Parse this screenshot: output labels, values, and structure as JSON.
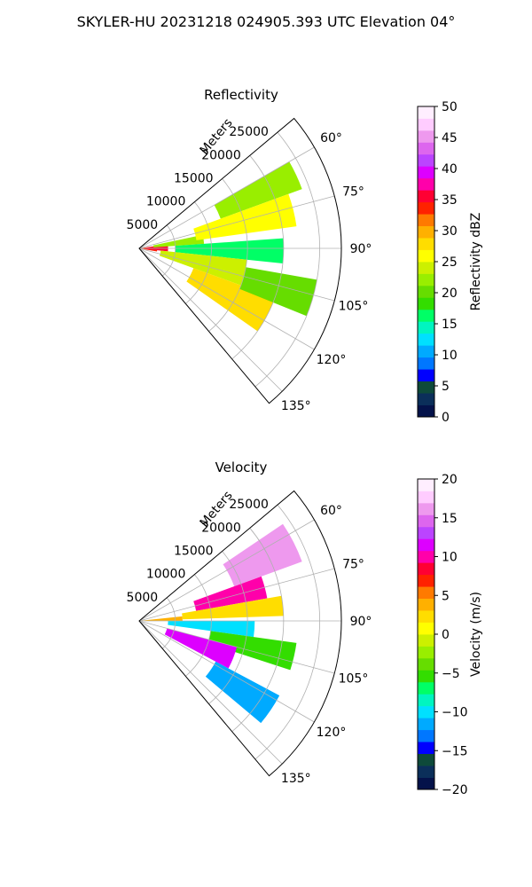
{
  "figure": {
    "title": "SKYLER-HU  20231218  024905.393 UTC Elevation 04°"
  },
  "chart_data": [
    {
      "type": "heatmap",
      "projection": "polar-sector",
      "title": "Reflectivity",
      "radial_label": "Meters",
      "theta_range_deg": [
        50,
        140
      ],
      "r_max_m": 28000,
      "r_ticks": [
        5000,
        10000,
        15000,
        20000,
        25000
      ],
      "r_tick_labels": [
        "5000",
        "10000",
        "15000",
        "20000",
        "25000"
      ],
      "theta_ticks": [
        60,
        75,
        90,
        105,
        120,
        135
      ],
      "theta_tick_labels": [
        "60°",
        "75°",
        "90°",
        "105°",
        "120°",
        "135°"
      ],
      "grid": true,
      "colorbar": {
        "label": "Reflectivity dBZ",
        "vmin": 0,
        "vmax": 50,
        "ticks": [
          0,
          5,
          10,
          15,
          20,
          25,
          30,
          35,
          40,
          45,
          50
        ],
        "tick_labels": [
          "0",
          "5",
          "10",
          "15",
          "20",
          "25",
          "30",
          "35",
          "40",
          "45",
          "50"
        ],
        "colors": [
          "#04124a",
          "#0b2f5a",
          "#0e4a3a",
          "#0000ff",
          "#0077ff",
          "#00aaff",
          "#00e0ff",
          "#00f5c0",
          "#00ff66",
          "#33dd00",
          "#66dd00",
          "#99ee00",
          "#ccf000",
          "#ffff00",
          "#ffdd00",
          "#ffb000",
          "#ff7a00",
          "#ff2200",
          "#ff0033",
          "#ff00aa",
          "#dd00ff",
          "#bb44ff",
          "#dd66ee",
          "#ee99ee",
          "#ffccff",
          "#ffeeff"
        ]
      },
      "cells": [
        {
          "theta": [
            82,
            100
          ],
          "r": [
            0,
            2500
          ],
          "value": 33
        },
        {
          "theta": [
            84,
            96
          ],
          "r": [
            1000,
            4000
          ],
          "value": 36
        },
        {
          "theta": [
            78,
            86
          ],
          "r": [
            2000,
            9000
          ],
          "value": 22
        },
        {
          "theta": [
            86,
            96
          ],
          "r": [
            5000,
            20000
          ],
          "value": 16
        },
        {
          "theta": [
            96,
            110
          ],
          "r": [
            3000,
            15000
          ],
          "value": 24
        },
        {
          "theta": [
            110,
            125
          ],
          "r": [
            8000,
            20000
          ],
          "value": 27
        },
        {
          "theta": [
            60,
            70
          ],
          "r": [
            12000,
            24000
          ],
          "value": 23
        },
        {
          "theta": [
            70,
            82
          ],
          "r": [
            8000,
            22000
          ],
          "value": 25
        },
        {
          "theta": [
            100,
            112
          ],
          "r": [
            15000,
            25000
          ],
          "value": 21
        }
      ]
    },
    {
      "type": "heatmap",
      "projection": "polar-sector",
      "title": "Velocity",
      "radial_label": "Meters",
      "theta_range_deg": [
        50,
        140
      ],
      "r_max_m": 28000,
      "r_ticks": [
        5000,
        10000,
        15000,
        20000,
        25000
      ],
      "r_tick_labels": [
        "5000",
        "10000",
        "15000",
        "20000",
        "25000"
      ],
      "theta_ticks": [
        60,
        75,
        90,
        105,
        120,
        135
      ],
      "theta_tick_labels": [
        "60°",
        "75°",
        "90°",
        "105°",
        "120°",
        "135°"
      ],
      "grid": true,
      "colorbar": {
        "label": "Velocity (m/s)",
        "vmin": -20,
        "vmax": 20,
        "ticks": [
          -20,
          -15,
          -10,
          -5,
          0,
          5,
          10,
          15,
          20
        ],
        "tick_labels": [
          "−20",
          "−15",
          "−10",
          "−5",
          "0",
          "5",
          "10",
          "15",
          "20"
        ],
        "colors": [
          "#04124a",
          "#0b2f5a",
          "#0e4a3a",
          "#0000ff",
          "#0077ff",
          "#00aaff",
          "#00e0ff",
          "#00f5c0",
          "#00ff66",
          "#33dd00",
          "#66dd00",
          "#99ee00",
          "#ccf000",
          "#ffff00",
          "#ffdd00",
          "#ffb000",
          "#ff7a00",
          "#ff2200",
          "#ff0033",
          "#ff00aa",
          "#dd00ff",
          "#bb44ff",
          "#dd66ee",
          "#ee99ee",
          "#ffccff",
          "#ffeeff"
        ]
      },
      "cells": [
        {
          "theta": [
            84,
            90
          ],
          "r": [
            0,
            6000
          ],
          "value": 4
        },
        {
          "theta": [
            56,
            70
          ],
          "r": [
            14000,
            24000
          ],
          "value": 16
        },
        {
          "theta": [
            70,
            80
          ],
          "r": [
            8000,
            18000
          ],
          "value": 10
        },
        {
          "theta": [
            80,
            88
          ],
          "r": [
            6000,
            20000
          ],
          "value": 2
        },
        {
          "theta": [
            90,
            98
          ],
          "r": [
            4000,
            16000
          ],
          "value": -10
        },
        {
          "theta": [
            98,
            108
          ],
          "r": [
            10000,
            22000
          ],
          "value": -6
        },
        {
          "theta": [
            105,
            118
          ],
          "r": [
            4000,
            14000
          ],
          "value": 11
        },
        {
          "theta": [
            118,
            130
          ],
          "r": [
            12000,
            22000
          ],
          "value": -12
        }
      ]
    }
  ]
}
